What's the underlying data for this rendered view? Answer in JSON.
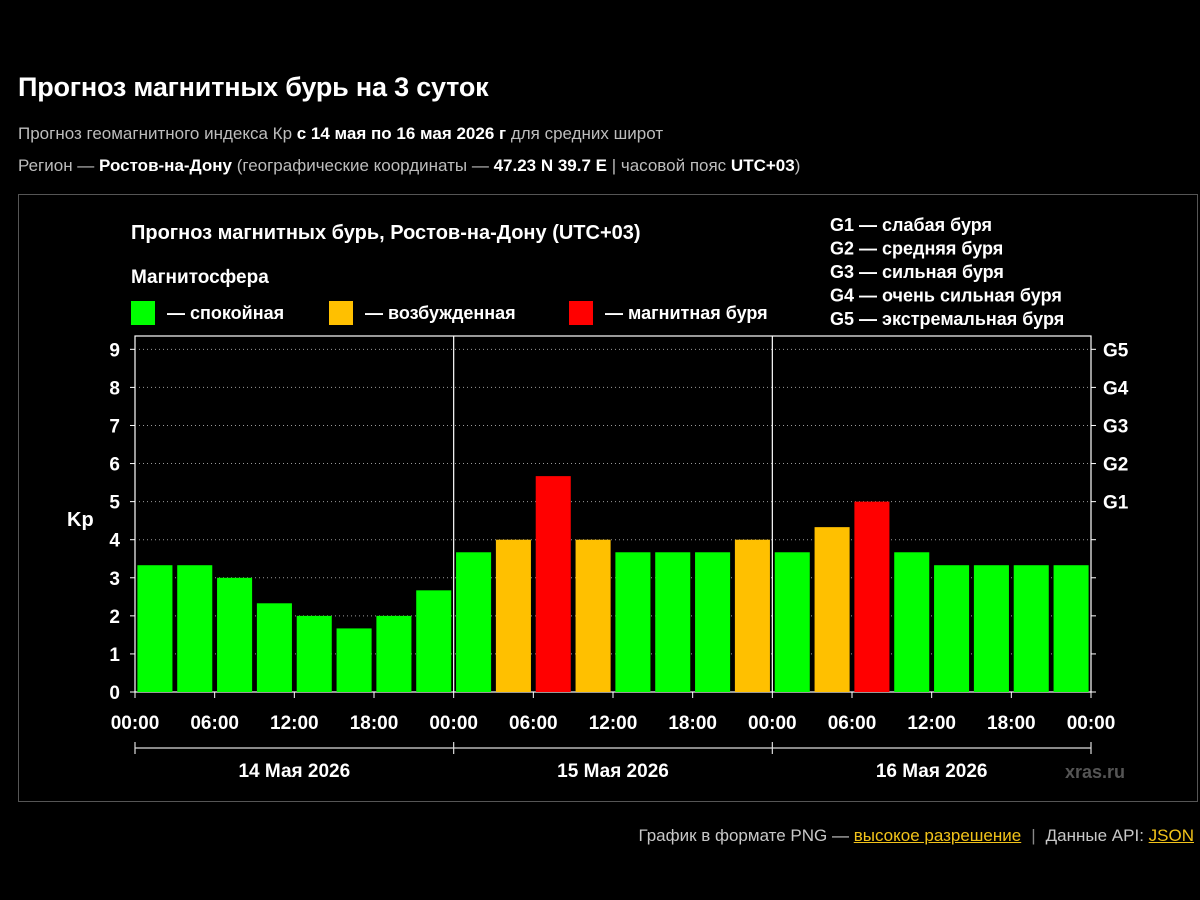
{
  "page": {
    "title": "Прогноз магнитных бурь на 3 суток",
    "line1": {
      "prefix": "Прогноз геомагнитного индекса Кр ",
      "period": "с 14 мая по 16 мая 2026 г",
      "suffix": " для средних широт"
    },
    "line2": {
      "prefix": "Регион — ",
      "city": "Ростов-на-Дону",
      "mid": " (географические координаты — ",
      "coords": "47.23 N 39.7 E",
      "mid2": " | часовой пояс ",
      "tz": "UTC+03",
      "end": ")"
    },
    "footer": {
      "png_text": "График в формате PNG — ",
      "png_link": "высокое разрешение",
      "separator": "|",
      "api_text": "Данные API: ",
      "api_link": "JSON"
    }
  },
  "chart_data": {
    "type": "bar",
    "title": "Прогноз магнитных бурь, Ростов-на-Дону (UTC+03)",
    "ylabel": "Kp",
    "ylim": [
      0,
      9
    ],
    "yticks": [
      "0",
      "1",
      "2",
      "3",
      "4",
      "5",
      "6",
      "7",
      "8",
      "9"
    ],
    "right_ticks": [
      {
        "label": "G1",
        "value": 5
      },
      {
        "label": "G2",
        "value": 6
      },
      {
        "label": "G3",
        "value": 7
      },
      {
        "label": "G4",
        "value": 8
      },
      {
        "label": "G5",
        "value": 9
      }
    ],
    "legend_title": "Магнитосфера",
    "legend": [
      {
        "label": "— спокойная",
        "color": "#00ff00"
      },
      {
        "label": "— возбужденная",
        "color": "#ffc000"
      },
      {
        "label": "— магнитная буря",
        "color": "#ff0000"
      }
    ],
    "g_legend": [
      "G1 — слабая буря",
      "G2 — средняя буря",
      "G3 — сильная буря",
      "G4 — очень сильная буря",
      "G5 — экстремальная буря"
    ],
    "x_ticks": [
      "00:00",
      "06:00",
      "12:00",
      "18:00",
      "00:00",
      "06:00",
      "12:00",
      "18:00",
      "00:00",
      "06:00",
      "12:00",
      "18:00",
      "00:00"
    ],
    "days": [
      "14 Мая 2026",
      "15 Мая 2026",
      "16 Мая 2026"
    ],
    "values": [
      3.33,
      3.33,
      3.0,
      2.33,
      2.0,
      1.67,
      2.0,
      2.67,
      3.67,
      4.0,
      5.67,
      4.0,
      3.67,
      3.67,
      3.67,
      4.0,
      3.67,
      4.33,
      5.0,
      3.67,
      3.33,
      3.33,
      3.33,
      3.33
    ],
    "status": [
      "quiet",
      "quiet",
      "quiet",
      "quiet",
      "quiet",
      "quiet",
      "quiet",
      "quiet",
      "quiet",
      "active",
      "storm",
      "active",
      "quiet",
      "quiet",
      "quiet",
      "active",
      "quiet",
      "active",
      "storm",
      "quiet",
      "quiet",
      "quiet",
      "quiet",
      "quiet"
    ],
    "status_colors": {
      "quiet": "#00ff00",
      "active": "#ffc000",
      "storm": "#ff0000"
    },
    "watermark": "xras.ru"
  }
}
